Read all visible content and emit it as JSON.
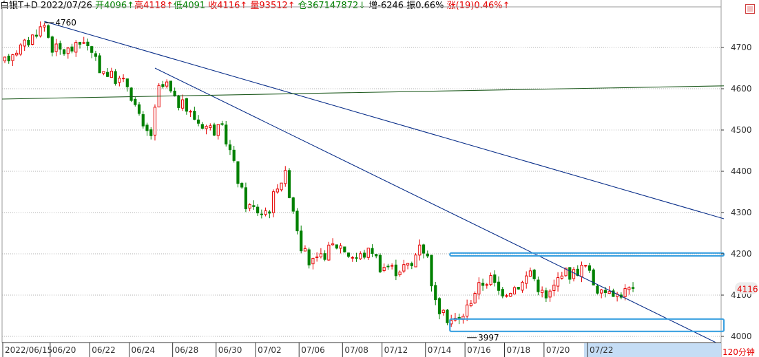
{
  "header": {
    "name": "白银T+D",
    "date": "2022/07/26",
    "open": "开4096↑",
    "high": "高4118↑",
    "low": "低4091",
    "close": "收4116↑",
    "volume": "量93512↑",
    "position": "仓367147872↓",
    "increase": "增-6246",
    "amplitude": "振0.66%",
    "change": "涨(19)0.46%↑"
  },
  "colors": {
    "up": "#e60000",
    "down": "#008000",
    "trendline": "#0a2f8a",
    "horizontal_line": "#1e5a1e",
    "box": "#3aa0e0",
    "grid": "#999999"
  },
  "timeframe_label": "120分钟",
  "last_price_label": "4116",
  "chart_data": {
    "type": "candlestick",
    "y_ticks": [
      4000,
      4100,
      4200,
      4300,
      4400,
      4500,
      4600,
      4700
    ],
    "y_range": [
      3985,
      4775
    ],
    "x_labels": [
      "2022/06/15",
      "06/20",
      "06/22",
      "06/24",
      "06/28",
      "06/30",
      "07/02",
      "07/06",
      "07/08",
      "07/12",
      "07/14",
      "07/16",
      "07/18",
      "07/20",
      "07/22"
    ],
    "x_label_index": [
      0,
      12,
      22,
      32,
      43,
      54,
      64,
      75,
      86,
      96,
      107,
      117,
      127,
      137,
      148
    ],
    "candle_count": 160,
    "annotations": [
      {
        "text": "4760",
        "index": 10,
        "value": 4760
      },
      {
        "text": "3997",
        "index": 117,
        "value": 3997
      }
    ],
    "anchors": [
      [
        0,
        4665
      ],
      [
        2,
        4690
      ],
      [
        4,
        4700
      ],
      [
        6,
        4715
      ],
      [
        8,
        4740
      ],
      [
        10,
        4755
      ],
      [
        12,
        4700
      ],
      [
        15,
        4690
      ],
      [
        18,
        4700
      ],
      [
        20,
        4720
      ],
      [
        22,
        4680
      ],
      [
        24,
        4650
      ],
      [
        27,
        4630
      ],
      [
        29,
        4620
      ],
      [
        31,
        4610
      ],
      [
        33,
        4560
      ],
      [
        35,
        4500
      ],
      [
        37,
        4490
      ],
      [
        39,
        4600
      ],
      [
        41,
        4610
      ],
      [
        43,
        4570
      ],
      [
        45,
        4560
      ],
      [
        47,
        4540
      ],
      [
        49,
        4520
      ],
      [
        51,
        4510
      ],
      [
        53,
        4500
      ],
      [
        55,
        4500
      ],
      [
        57,
        4450
      ],
      [
        59,
        4380
      ],
      [
        61,
        4320
      ],
      [
        63,
        4310
      ],
      [
        65,
        4300
      ],
      [
        67,
        4310
      ],
      [
        69,
        4370
      ],
      [
        71,
        4390
      ],
      [
        73,
        4310
      ],
      [
        75,
        4220
      ],
      [
        77,
        4180
      ],
      [
        79,
        4180
      ],
      [
        81,
        4200
      ],
      [
        83,
        4220
      ],
      [
        85,
        4220
      ],
      [
        87,
        4200
      ],
      [
        89,
        4190
      ],
      [
        91,
        4200
      ],
      [
        93,
        4210
      ],
      [
        95,
        4170
      ],
      [
        97,
        4170
      ],
      [
        99,
        4160
      ],
      [
        101,
        4170
      ],
      [
        103,
        4170
      ],
      [
        105,
        4230
      ],
      [
        107,
        4190
      ],
      [
        109,
        4080
      ],
      [
        111,
        4050
      ],
      [
        113,
        4040
      ],
      [
        115,
        4040
      ],
      [
        117,
        4070
      ],
      [
        119,
        4110
      ],
      [
        121,
        4130
      ],
      [
        123,
        4140
      ],
      [
        125,
        4110
      ],
      [
        127,
        4110
      ],
      [
        129,
        4120
      ],
      [
        131,
        4130
      ],
      [
        133,
        4160
      ],
      [
        135,
        4120
      ],
      [
        137,
        4090
      ],
      [
        139,
        4120
      ],
      [
        141,
        4160
      ],
      [
        143,
        4150
      ],
      [
        145,
        4160
      ],
      [
        147,
        4170
      ],
      [
        149,
        4130
      ],
      [
        151,
        4100
      ],
      [
        153,
        4120
      ],
      [
        155,
        4100
      ],
      [
        157,
        4110
      ],
      [
        159,
        4116
      ]
    ],
    "trendlines": [
      {
        "from": [
          10,
          4763
        ],
        "to": [
          182,
          4285
        ]
      },
      {
        "from": [
          38,
          4650
        ],
        "to": [
          180,
          3985
        ]
      }
    ],
    "horizontal_line": {
      "from": [
        0,
        4575
      ],
      "to": [
        182,
        4607
      ]
    },
    "boxes": [
      {
        "from_index": 113,
        "to_index": 182,
        "top": 4202,
        "bottom": 4195
      },
      {
        "from_index": 113,
        "to_index": 182,
        "top": 4042,
        "bottom": 4012
      }
    ]
  }
}
